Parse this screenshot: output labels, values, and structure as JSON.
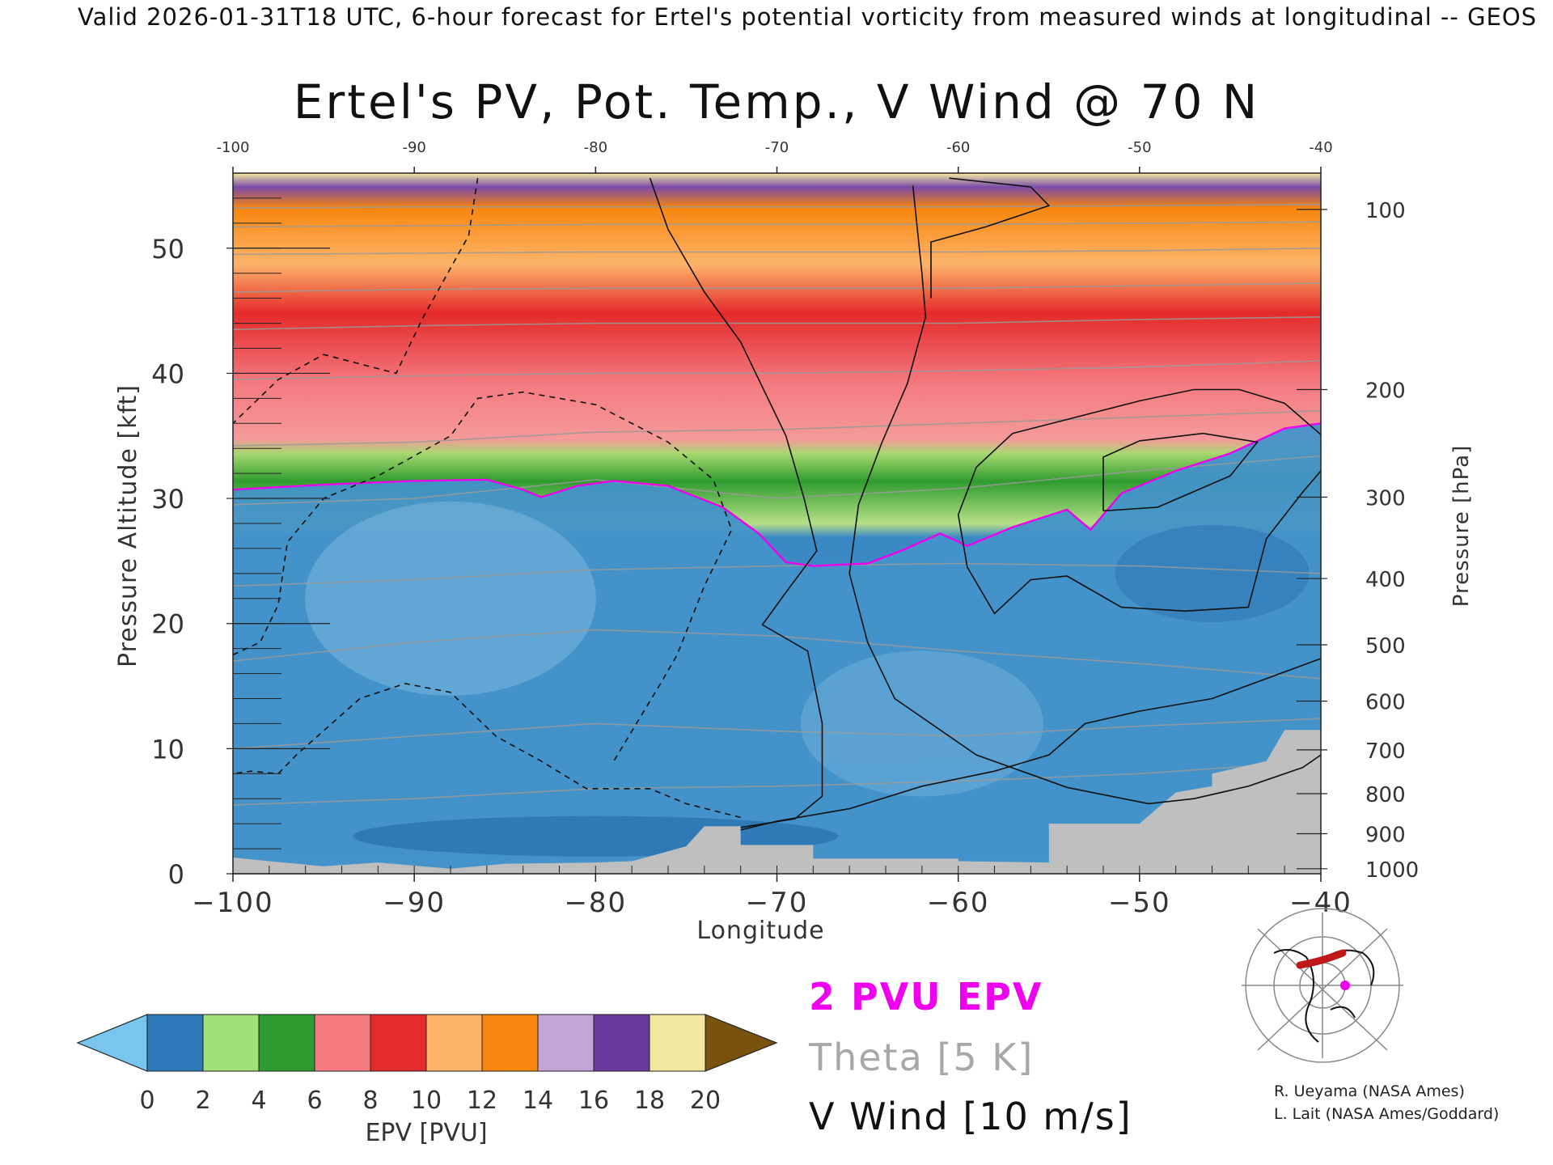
{
  "banner": "Valid 2026-01-31T18 UTC, 6-hour forecast for Ertel's potential vorticity from measured winds at longitudinal -- GEOS",
  "chart_data": {
    "type": "heatmap",
    "title": "Ertel's PV, Pot. Temp., V Wind @ 70 N",
    "xlabel": "Longitude",
    "ylabel_left": "Pressure Altitude [kft]",
    "ylabel_right": "Pressure [hPa]",
    "xlim": [
      -100,
      -40
    ],
    "ylim": [
      0,
      56
    ],
    "x_ticks": [
      -100,
      -90,
      -80,
      -70,
      -60,
      -50,
      -40
    ],
    "x_tick_labels": [
      "−100",
      "−90",
      "−80",
      "−70",
      "−60",
      "−50",
      "−40"
    ],
    "x_top_tick_labels": [
      "-100",
      "-90",
      "-80",
      "-70",
      "-60",
      "-50",
      "-40"
    ],
    "y_left_ticks": [
      0,
      10,
      20,
      30,
      40,
      50
    ],
    "y_right_ticks": [
      {
        "label": "100",
        "kft": 53.1
      },
      {
        "label": "200",
        "kft": 38.7
      },
      {
        "label": "300",
        "kft": 30.1
      },
      {
        "label": "400",
        "kft": 23.6
      },
      {
        "label": "500",
        "kft": 18.3
      },
      {
        "label": "600",
        "kft": 13.8
      },
      {
        "label": "700",
        "kft": 9.9
      },
      {
        "label": "800",
        "kft": 6.4
      },
      {
        "label": "900",
        "kft": 3.2
      },
      {
        "label": "1000",
        "kft": 0.4
      }
    ],
    "pv2_boundary": [
      [
        -100,
        30.7
      ],
      [
        -95,
        31.1
      ],
      [
        -90,
        31.4
      ],
      [
        -86,
        31.5
      ],
      [
        -84,
        30.7
      ],
      [
        -83,
        30.1
      ],
      [
        -81,
        31.0
      ],
      [
        -79,
        31.4
      ],
      [
        -76,
        31.0
      ],
      [
        -73,
        29.3
      ],
      [
        -71,
        27.2
      ],
      [
        -69.5,
        24.9
      ],
      [
        -68,
        24.6
      ],
      [
        -65,
        24.8
      ],
      [
        -63,
        25.9
      ],
      [
        -61,
        27.2
      ],
      [
        -59.5,
        26.2
      ],
      [
        -57,
        27.7
      ],
      [
        -54,
        29.1
      ],
      [
        -52.7,
        27.5
      ],
      [
        -51,
        30.4
      ],
      [
        -48,
        32.2
      ],
      [
        -45,
        33.6
      ],
      [
        -42,
        35.6
      ],
      [
        -40,
        36.0
      ]
    ],
    "theta_contours": [
      {
        "level": 270,
        "points": [
          [
            -100,
            5.5
          ],
          [
            -90,
            6.0
          ],
          [
            -80,
            6.8
          ],
          [
            -70,
            7.0
          ],
          [
            -60,
            7.4
          ],
          [
            -50,
            8.0
          ],
          [
            -40,
            9.0
          ]
        ]
      },
      {
        "level": 280,
        "points": [
          [
            -100,
            10.0
          ],
          [
            -90,
            11.0
          ],
          [
            -80,
            12.0
          ],
          [
            -70,
            11.4
          ],
          [
            -60,
            11.0
          ],
          [
            -50,
            11.8
          ],
          [
            -40,
            12.4
          ]
        ]
      },
      {
        "level": 290,
        "points": [
          [
            -100,
            17.0
          ],
          [
            -90,
            18.5
          ],
          [
            -80,
            19.5
          ],
          [
            -70,
            19.0
          ],
          [
            -60,
            17.8
          ],
          [
            -50,
            16.8
          ],
          [
            -40,
            15.6
          ]
        ]
      },
      {
        "level": 300,
        "points": [
          [
            -100,
            23.0
          ],
          [
            -90,
            23.5
          ],
          [
            -80,
            24.3
          ],
          [
            -70,
            24.6
          ],
          [
            -60,
            24.8
          ],
          [
            -50,
            24.6
          ],
          [
            -40,
            24.0
          ]
        ]
      },
      {
        "level": 310,
        "points": [
          [
            -100,
            29.5
          ],
          [
            -90,
            30.0
          ],
          [
            -80,
            31.5
          ],
          [
            -70,
            30.0
          ],
          [
            -60,
            30.8
          ],
          [
            -50,
            32.2
          ],
          [
            -40,
            33.4
          ]
        ]
      },
      {
        "level": 320,
        "points": [
          [
            -100,
            34.2
          ],
          [
            -90,
            34.5
          ],
          [
            -80,
            35.3
          ],
          [
            -70,
            35.5
          ],
          [
            -60,
            36.0
          ],
          [
            -50,
            36.5
          ],
          [
            -40,
            37.0
          ]
        ]
      },
      {
        "level": 340,
        "points": [
          [
            -100,
            39.5
          ],
          [
            -90,
            39.8
          ],
          [
            -80,
            40.0
          ],
          [
            -70,
            40.0
          ],
          [
            -60,
            40.2
          ],
          [
            -50,
            40.5
          ],
          [
            -40,
            41.0
          ]
        ]
      },
      {
        "level": 360,
        "points": [
          [
            -100,
            43.5
          ],
          [
            -90,
            43.8
          ],
          [
            -80,
            44.0
          ],
          [
            -70,
            44.0
          ],
          [
            -60,
            44.0
          ],
          [
            -50,
            44.3
          ],
          [
            -40,
            44.5
          ]
        ]
      },
      {
        "level": 370,
        "points": [
          [
            -100,
            46.5
          ],
          [
            -90,
            46.7
          ],
          [
            -80,
            46.8
          ],
          [
            -70,
            46.8
          ],
          [
            -60,
            46.8
          ],
          [
            -50,
            47.0
          ],
          [
            -40,
            47.2
          ]
        ]
      },
      {
        "level": 380,
        "points": [
          [
            -100,
            49.5
          ],
          [
            -90,
            49.6
          ],
          [
            -80,
            49.7
          ],
          [
            -70,
            49.7
          ],
          [
            -60,
            49.7
          ],
          [
            -50,
            49.8
          ],
          [
            -40,
            50.0
          ]
        ]
      },
      {
        "level": 390,
        "points": [
          [
            -100,
            51.7
          ],
          [
            -90,
            51.8
          ],
          [
            -80,
            51.9
          ],
          [
            -70,
            51.9
          ],
          [
            -60,
            51.9
          ],
          [
            -50,
            52.0
          ],
          [
            -40,
            52.1
          ]
        ]
      },
      {
        "level": 400,
        "points": [
          [
            -100,
            53.2
          ],
          [
            -90,
            53.3
          ],
          [
            -80,
            53.3
          ],
          [
            -70,
            53.3
          ],
          [
            -60,
            53.3
          ],
          [
            -50,
            53.4
          ],
          [
            -40,
            53.5
          ]
        ]
      }
    ],
    "wind_contours": [
      {
        "level": 0,
        "dashed": false,
        "points": [
          [
            -77,
            55.6
          ],
          [
            -76,
            51.5
          ],
          [
            -74,
            46.5
          ],
          [
            -72,
            42.5
          ],
          [
            -70.5,
            38
          ],
          [
            -69.5,
            35.0
          ],
          [
            -68.5,
            30
          ],
          [
            -67.8,
            25.8
          ],
          [
            -69.5,
            22.5
          ],
          [
            -70.8,
            19.9
          ],
          [
            -68.3,
            17.8
          ],
          [
            -67.5,
            12.0
          ],
          [
            -67.5,
            6.2
          ],
          [
            -69.0,
            4.4
          ],
          [
            -72.0,
            3.7
          ]
        ]
      },
      {
        "level": 10,
        "dashed": false,
        "points": [
          [
            -62.5,
            55.0
          ],
          [
            -62.0,
            48.0
          ],
          [
            -61.8,
            44.5
          ],
          [
            -62.8,
            39.2
          ],
          [
            -64.2,
            34.5
          ],
          [
            -65.5,
            29.5
          ],
          [
            -66.0,
            24.0
          ],
          [
            -65.0,
            18.5
          ],
          [
            -63.5,
            14.0
          ],
          [
            -59.0,
            9.5
          ],
          [
            -54.0,
            6.9
          ],
          [
            -49.5,
            5.6
          ],
          [
            -47.0,
            6.0
          ],
          [
            -44.0,
            7.0
          ],
          [
            -41.0,
            8.5
          ],
          [
            -40.0,
            9.5
          ]
        ]
      },
      {
        "level": 0,
        "dashed": false,
        "points": [
          [
            -60.5,
            55.6
          ],
          [
            -56.0,
            54.9
          ],
          [
            -55.0,
            53.4
          ],
          [
            -58.5,
            51.7
          ],
          [
            -61.5,
            50.5
          ],
          [
            -61.5,
            46.0
          ]
        ]
      },
      {
        "level": 0,
        "dashed": false,
        "points": [
          [
            -40.0,
            35.1
          ],
          [
            -42.0,
            37.6
          ],
          [
            -44.5,
            38.7
          ],
          [
            -47.0,
            38.7
          ],
          [
            -50.0,
            37.8
          ],
          [
            -53.5,
            36.5
          ],
          [
            -57.0,
            35.2
          ],
          [
            -59.0,
            32.5
          ],
          [
            -60.0,
            28.7
          ],
          [
            -59.5,
            24.5
          ],
          [
            -58.0,
            20.8
          ],
          [
            -56.0,
            23.5
          ],
          [
            -54.0,
            23.8
          ],
          [
            -51.0,
            21.3
          ],
          [
            -47.5,
            21.0
          ],
          [
            -44.0,
            21.3
          ],
          [
            -43.0,
            26.8
          ],
          [
            -41.0,
            30.5
          ],
          [
            -40.0,
            32.2
          ]
        ]
      },
      {
        "level": 10,
        "dashed": false,
        "points": [
          [
            -52.0,
            29.0
          ],
          [
            -52.0,
            33.3
          ],
          [
            -50.0,
            34.6
          ],
          [
            -46.5,
            35.2
          ],
          [
            -43.5,
            34.5
          ],
          [
            -45.0,
            31.8
          ],
          [
            -49.0,
            29.3
          ],
          [
            -52.0,
            29.0
          ]
        ]
      },
      {
        "level": 10,
        "dashed": false,
        "points": [
          [
            -40.0,
            17.2
          ],
          [
            -46.0,
            14.0
          ],
          [
            -50.0,
            13.0
          ],
          [
            -53.0,
            12.0
          ],
          [
            -55.0,
            9.5
          ],
          [
            -58.0,
            8.2
          ],
          [
            -62.0,
            7.0
          ],
          [
            -66.0,
            5.2
          ],
          [
            -70.0,
            4.2
          ],
          [
            -72.0,
            3.5
          ]
        ]
      },
      {
        "level": -10,
        "dashed": true,
        "points": [
          [
            -86.5,
            55.6
          ],
          [
            -87.0,
            51.0
          ],
          [
            -89.5,
            44.5
          ],
          [
            -91.0,
            40.0
          ],
          [
            -95.0,
            41.5
          ],
          [
            -97.5,
            39.5
          ],
          [
            -100.0,
            36.0
          ]
        ]
      },
      {
        "level": -10,
        "dashed": true,
        "points": [
          [
            -72.0,
            4.5
          ],
          [
            -75.0,
            5.6
          ],
          [
            -77.0,
            6.8
          ],
          [
            -80.5,
            6.8
          ],
          [
            -83.0,
            9.0
          ],
          [
            -85.5,
            11.0
          ],
          [
            -88.0,
            14.5
          ],
          [
            -90.5,
            15.2
          ],
          [
            -93.0,
            14.0
          ],
          [
            -96.5,
            9.5
          ],
          [
            -97.5,
            8.0
          ],
          [
            -99.0,
            8.2
          ],
          [
            -100.0,
            8.0
          ]
        ]
      },
      {
        "level": -10,
        "dashed": true,
        "points": [
          [
            -100.0,
            17.5
          ],
          [
            -98.5,
            18.5
          ],
          [
            -97.5,
            21.5
          ],
          [
            -97.0,
            26.5
          ],
          [
            -95.0,
            30.0
          ],
          [
            -92.0,
            31.8
          ],
          [
            -88.0,
            35.0
          ],
          [
            -86.5,
            38.0
          ],
          [
            -84.0,
            38.5
          ],
          [
            -80.0,
            37.5
          ],
          [
            -76.0,
            34.5
          ],
          [
            -73.5,
            31.5
          ],
          [
            -72.5,
            27.5
          ],
          [
            -74.0,
            23.0
          ],
          [
            -75.5,
            17.5
          ],
          [
            -76.5,
            15.0
          ],
          [
            -79.0,
            9.0
          ]
        ]
      }
    ],
    "terrain": [
      [
        -100,
        1.3
      ],
      [
        -98,
        1.0
      ],
      [
        -95,
        0.6
      ],
      [
        -92,
        0.9
      ],
      [
        -88,
        0.4
      ],
      [
        -85,
        0.8
      ],
      [
        -80,
        0.9
      ],
      [
        -78,
        1.0
      ],
      [
        -76,
        1.8
      ],
      [
        -75,
        2.2
      ],
      [
        -74,
        3.8
      ],
      [
        -72,
        3.8
      ],
      [
        -72,
        2.3
      ],
      [
        -69,
        2.3
      ],
      [
        -68,
        2.3
      ],
      [
        -68,
        1.2
      ],
      [
        -60,
        1.2
      ],
      [
        -60,
        1.0
      ],
      [
        -55,
        0.9
      ],
      [
        -55,
        4.0
      ],
      [
        -50,
        4.0
      ],
      [
        -48,
        6.5
      ],
      [
        -46,
        7.0
      ],
      [
        -46,
        8.0
      ],
      [
        -43,
        9.0
      ],
      [
        -42,
        11.5
      ],
      [
        -40,
        11.5
      ],
      [
        -40,
        0
      ]
    ],
    "pv_colorbar": {
      "label": "EPV [PVU]",
      "ticks": [
        "0",
        "2",
        "4",
        "6",
        "8",
        "10",
        "12",
        "14",
        "16",
        "18",
        "20"
      ],
      "colors": [
        "#2e7ab8",
        "#a2e07a",
        "#2f9c2f",
        "#f47a80",
        "#e42a2a",
        "#fdb46a",
        "#f8860e",
        "#c2a4d6",
        "#6a3a9e",
        "#f4e8a0"
      ],
      "under_color": "#78c6ee",
      "over_color": "#7a5210"
    },
    "legend": [
      {
        "text": "2 PVU EPV",
        "color": "#ee00ee"
      },
      {
        "text": "Theta [5 K]",
        "color": "#a8a8a8"
      },
      {
        "text": "V Wind [10 m/s]",
        "color": "#111111"
      }
    ]
  },
  "credits": [
    "R. Ueyama (NASA Ames)",
    "L. Lait (NASA Ames/Goddard)"
  ]
}
